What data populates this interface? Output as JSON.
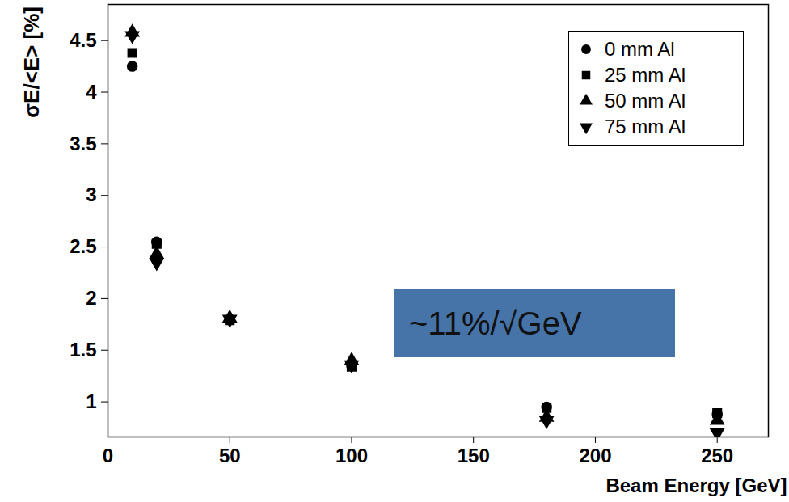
{
  "chart_data": {
    "type": "scatter",
    "x_label": "Beam Energy [GeV]",
    "y_label": "σE/<E> [%]",
    "x": [
      10,
      20,
      50,
      100,
      180,
      250
    ],
    "series": [
      {
        "name": "0 mm Al",
        "color": "#000000",
        "marker": "circle",
        "values": [
          4.25,
          2.55,
          1.8,
          1.35,
          0.95,
          0.88
        ]
      },
      {
        "name": "25 mm Al",
        "color": "#000000",
        "marker": "square",
        "values": [
          4.38,
          2.53,
          1.79,
          1.34,
          0.94,
          0.89
        ]
      },
      {
        "name": "50 mm Al",
        "color": "#000000",
        "marker": "triangle-up",
        "values": [
          4.58,
          2.43,
          1.81,
          1.4,
          0.85,
          0.82
        ]
      },
      {
        "name": "75 mm Al",
        "color": "#000000",
        "marker": "triangle-down",
        "values": [
          4.55,
          2.35,
          1.8,
          1.36,
          0.82,
          0.7
        ]
      }
    ],
    "xlim": [
      0,
      271
    ],
    "xticks": [
      0,
      50,
      100,
      150,
      200,
      250
    ],
    "ylim": [
      0.66,
      4.85
    ],
    "yticks": [
      1,
      1.5,
      2,
      2.5,
      3,
      3.5,
      4,
      4.5
    ],
    "grid": false,
    "legend": "top-right",
    "annotations": [
      {
        "text": "~11%/√GeV"
      }
    ]
  }
}
